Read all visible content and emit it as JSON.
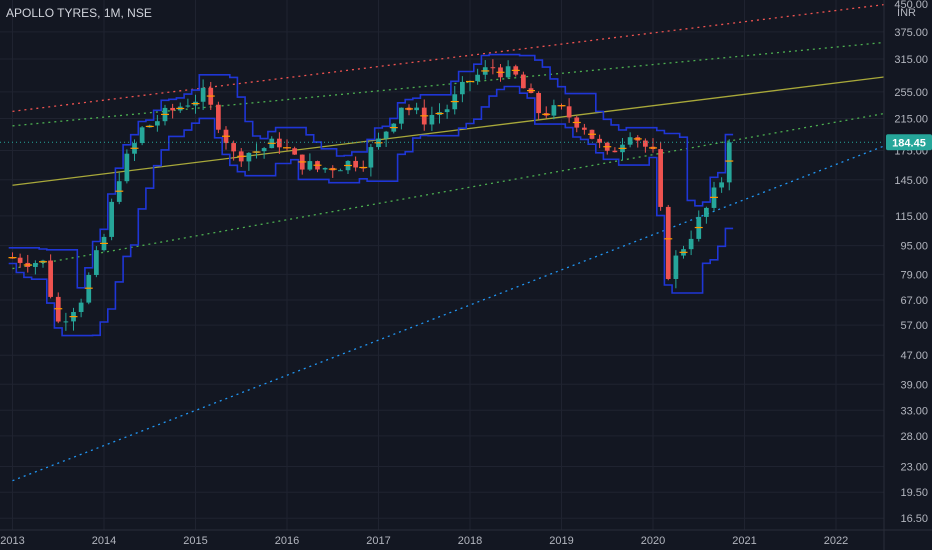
{
  "header": {
    "symbol_title": "APOLLO TYRES, 1M, NSE",
    "currency": "INR",
    "top_tick": "450.00"
  },
  "colors": {
    "background": "#131722",
    "grid": "#1f2330",
    "candle_up": "#26a69a",
    "candle_down": "#ef5350",
    "channel": "#1f36d6",
    "ma_short": "#ff9800",
    "trend_red": "#ef5350",
    "trend_green": "#4caf50",
    "trend_olive": "#a8a83a",
    "trend_blue": "#2196f3",
    "price_tag": "#26a69a",
    "axis_text": "#b2b5be"
  },
  "chart_data": {
    "type": "candlestick",
    "title": "APOLLO TYRES, 1M, NSE",
    "y_scale": "log",
    "ylim": [
      15.3,
      460
    ],
    "xlim": [
      "2013-01",
      "2022-07"
    ],
    "x_ticks": [
      "2013",
      "2014",
      "2015",
      "2016",
      "2017",
      "2018",
      "2019",
      "2020",
      "2021",
      "2022"
    ],
    "y_ticks": [
      16.5,
      19.5,
      23.0,
      28.0,
      33.0,
      39.0,
      47.0,
      57.0,
      67.0,
      79.0,
      95.0,
      115.0,
      145.0,
      175.0,
      215.0,
      255.0,
      315.0,
      375.0
    ],
    "y_tick_labels": [
      "16.50",
      "19.50",
      "23.00",
      "28.00",
      "33.00",
      "39.00",
      "47.00",
      "57.00",
      "67.00",
      "79.00",
      "95.00",
      "115.00",
      "145.00",
      "175.00",
      "215.00",
      "255.00",
      "315.00",
      "375.00"
    ],
    "last_price": 184.45,
    "last_price_label": "184.45",
    "anchor_points": [
      [
        "2013-01",
        88
      ],
      [
        "2013-05",
        85
      ],
      [
        "2013-07",
        58
      ],
      [
        "2013-10",
        68
      ],
      [
        "2013-12",
        88
      ],
      [
        "2014-01",
        100
      ],
      [
        "2014-03",
        150
      ],
      [
        "2014-06",
        200
      ],
      [
        "2014-09",
        220
      ],
      [
        "2014-12",
        240
      ],
      [
        "2015-02",
        250
      ],
      [
        "2015-04",
        210
      ],
      [
        "2015-06",
        170
      ],
      [
        "2015-09",
        175
      ],
      [
        "2015-12",
        185
      ],
      [
        "2016-02",
        165
      ],
      [
        "2016-05",
        155
      ],
      [
        "2016-08",
        160
      ],
      [
        "2016-11",
        165
      ],
      [
        "2017-01",
        185
      ],
      [
        "2017-04",
        235
      ],
      [
        "2017-07",
        215
      ],
      [
        "2017-10",
        230
      ],
      [
        "2018-01",
        275
      ],
      [
        "2018-04",
        300
      ],
      [
        "2018-07",
        280
      ],
      [
        "2018-10",
        225
      ],
      [
        "2019-01",
        225
      ],
      [
        "2019-04",
        205
      ],
      [
        "2019-07",
        168
      ],
      [
        "2019-10",
        200
      ],
      [
        "2020-01",
        170
      ],
      [
        "2020-03",
        80
      ],
      [
        "2020-05",
        95
      ],
      [
        "2020-08",
        120
      ],
      [
        "2020-10",
        145
      ],
      [
        "2020-11",
        184.45
      ]
    ]
  }
}
